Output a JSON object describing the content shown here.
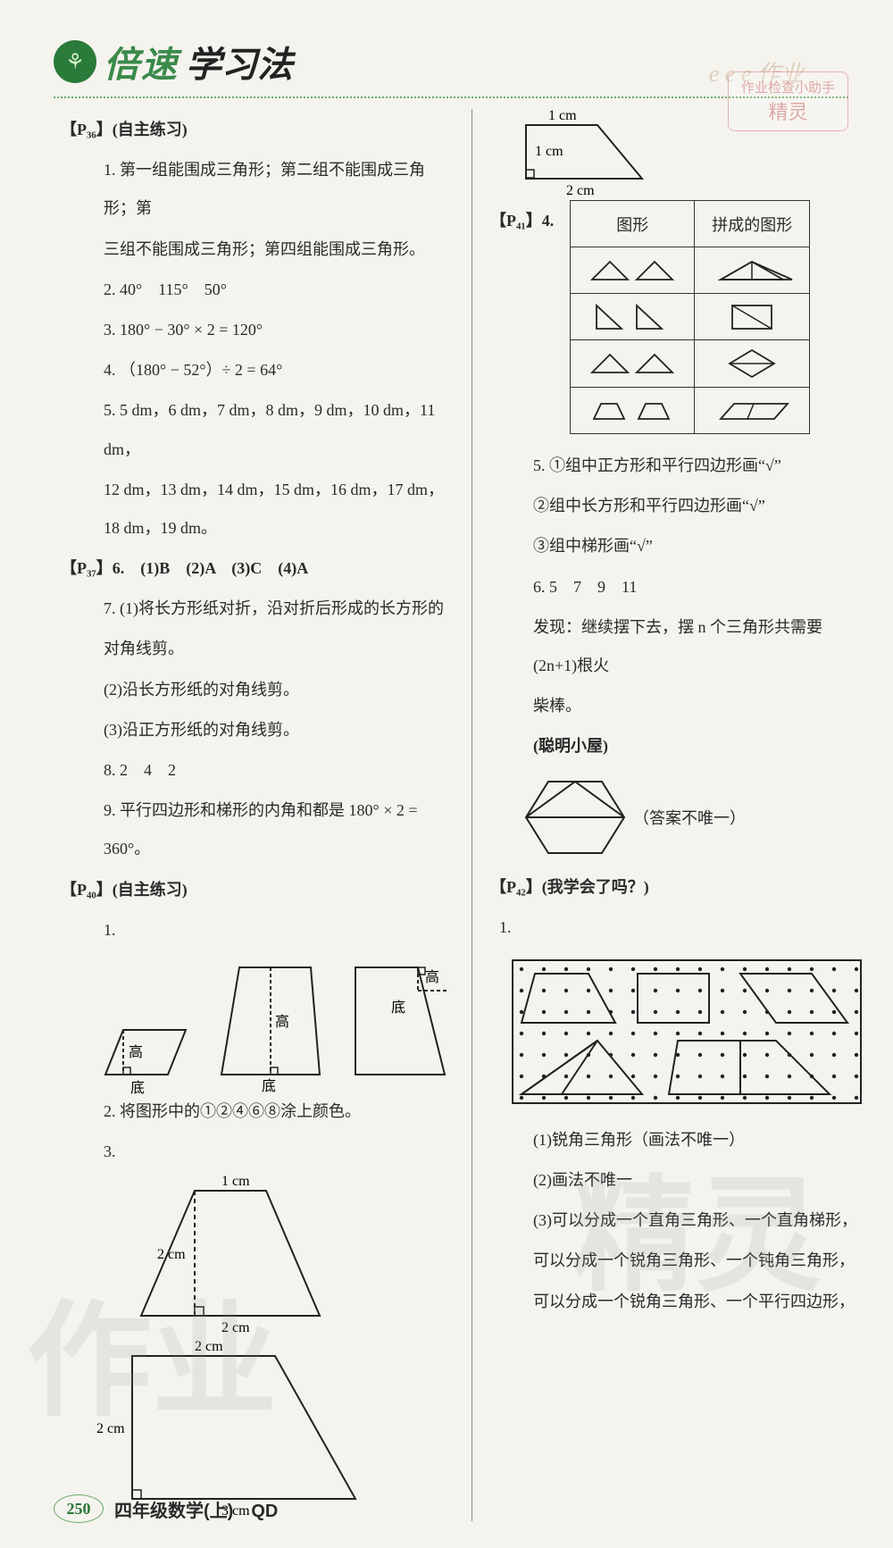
{
  "header": {
    "logo_glyph": "⚘",
    "title1": "倍速",
    "title2": "学习法"
  },
  "stamp": {
    "line1": "作业检查小助手",
    "line2": "精灵"
  },
  "wm_small": "e   e   e 作业",
  "left": {
    "sec_p36": "【P₃₆】(自主练习)",
    "q1": "1. 第一组能围成三角形；第二组不能围成三角形；第",
    "q1b": "三组不能围成三角形；第四组能围成三角形。",
    "q2": "2. 40°　115°　50°",
    "q3": "3. 180° − 30° × 2 = 120°",
    "q4": "4. （180° − 52°）÷ 2 = 64°",
    "q5a": "5. 5 dm，6 dm，7 dm，8 dm，9 dm，10 dm，11 dm，",
    "q5b": "12 dm，13 dm，14 dm，15 dm，16 dm，17 dm，18 dm，19 dm。",
    "sec_p37": "【P₃₇】6.　(1)B　(2)A　(3)C　(4)A",
    "q7_1": "7. (1)将长方形纸对折，沿对折后形成的长方形的",
    "q7_1b": "对角线剪。",
    "q7_2": "(2)沿长方形纸的对角线剪。",
    "q7_3": "(3)沿正方形纸的对角线剪。",
    "q8": "8. 2　4　2",
    "q9": "9. 平行四边形和梯形的内角和都是 180° × 2 = 360°。",
    "sec_p40": "【P₄₀】(自主练习)",
    "q40_1": "1.",
    "fig_labels": {
      "gao": "高",
      "di": "底"
    },
    "q40_2": "2. 将图形中的①②④⑥⑧涂上颜色。",
    "q40_3": "3.",
    "dims": {
      "t1": "1 cm",
      "t2": "2 cm",
      "t3": "2 cm",
      "t4": "2 cm",
      "t5": "2 cm",
      "t6": "3 cm"
    }
  },
  "right": {
    "trap_dims": {
      "top": "1 cm",
      "left": "1 cm",
      "bottom": "2 cm"
    },
    "sec_p41": "【P₄₁】4.",
    "table": {
      "h1": "图形",
      "h2": "拼成的图形"
    },
    "q5_1": "5. ①组中正方形和平行四边形画“√”",
    "q5_2": "②组中长方形和平行四边形画“√”",
    "q5_3": "③组中梯形画“√”",
    "q6": "6. 5　7　9　11",
    "q6_find": "发现：继续摆下去，摆 n 个三角形共需要(2n+1)根火",
    "q6_find_b": "柴棒。",
    "smart_house": "(聪明小屋)",
    "hex_note": "（答案不唯一）",
    "sec_p42": "【P₄₂】(我学会了吗？)",
    "grid_1": "1.",
    "ans1": "(1)锐角三角形（画法不唯一）",
    "ans2": "(2)画法不唯一",
    "ans3a": "(3)可以分成一个直角三角形、一个直角梯形，",
    "ans3b": "可以分成一个锐角三角形、一个钝角三角形，",
    "ans3c": "可以分成一个锐角三角形、一个平行四边形，"
  },
  "footer": {
    "page": "250",
    "text": "四年级数学(上)　QD"
  },
  "watermarks": {
    "wm1": "作业",
    "wm2": "精灵"
  },
  "colors": {
    "green": "#3a8a4a",
    "text": "#2a2a2a",
    "border": "#333333",
    "bg": "#f5f3ee"
  }
}
